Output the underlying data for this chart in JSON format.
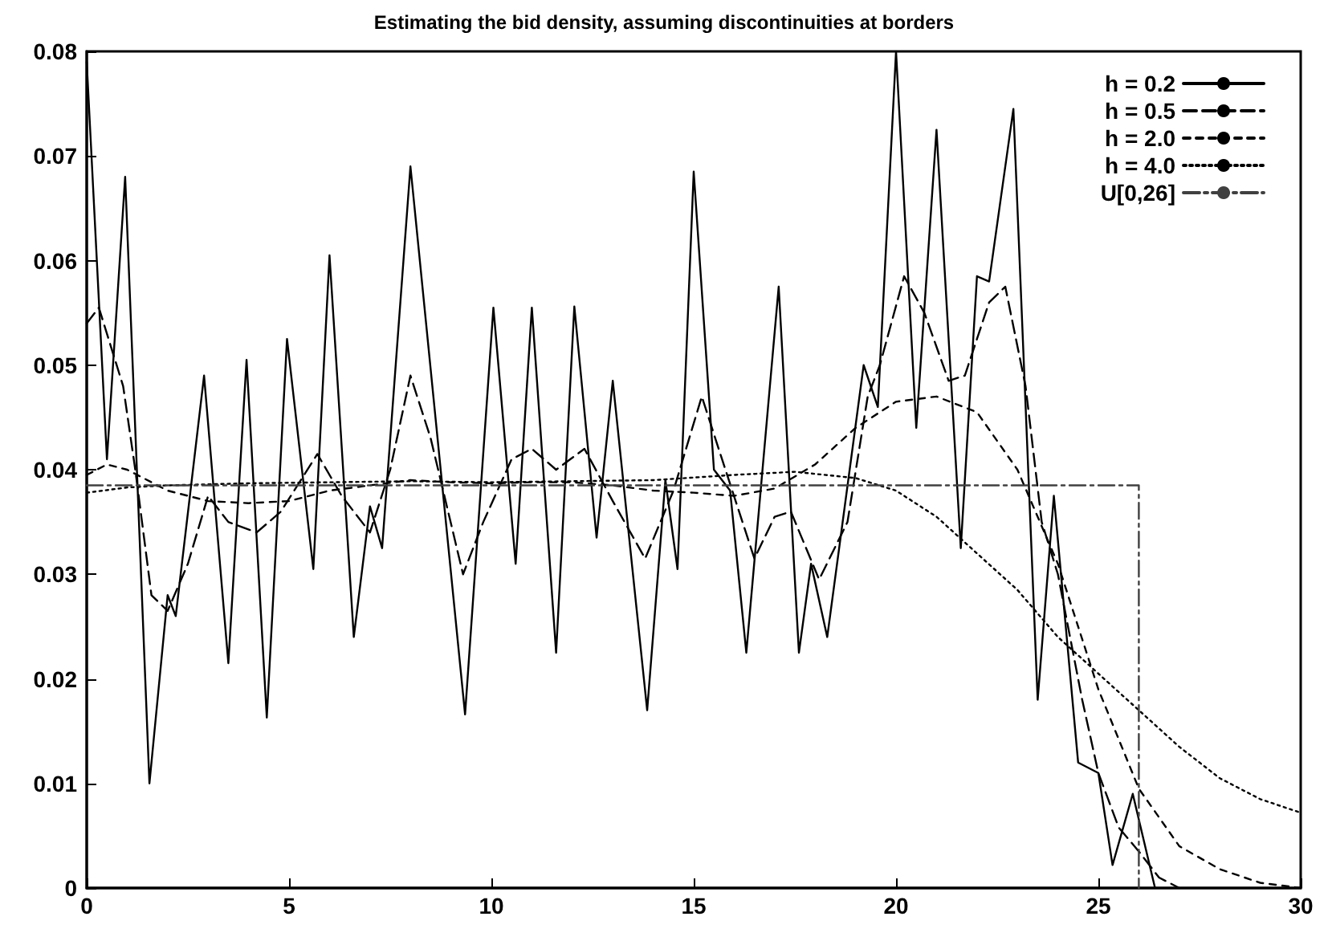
{
  "chart_data": {
    "type": "line",
    "title": "Estimating the bid density, assuming discontinuities at borders",
    "xlim": [
      0,
      30
    ],
    "xticks": [
      0,
      5,
      10,
      15,
      20,
      25,
      30
    ],
    "ylim": [
      0,
      0.08
    ],
    "yticks": [
      0,
      0.01,
      0.02,
      0.03,
      0.04,
      0.05,
      0.06,
      0.07,
      0.08
    ],
    "grid": false,
    "legend": "top right",
    "marker": "none",
    "series": [
      {
        "name": "h = 0.2",
        "color": "#000000",
        "line_style": "solid",
        "x": [
          0,
          0.5,
          0.95,
          1.55,
          2.0,
          2.2,
          2.9,
          3.5,
          3.95,
          4.45,
          4.95,
          5.6,
          6.0,
          6.6,
          7.0,
          7.3,
          8.0,
          9.35,
          10.05,
          10.6,
          11.0,
          11.6,
          12.05,
          12.6,
          13.0,
          13.85,
          14.3,
          14.6,
          15.0,
          15.5,
          15.9,
          16.3,
          17.1,
          17.6,
          17.9,
          18.3,
          19.2,
          19.55,
          20.0,
          20.5,
          21.0,
          21.6,
          22.0,
          22.3,
          22.9,
          23.5,
          23.9,
          24.5,
          25.0,
          25.35,
          25.85,
          26.4
        ],
        "values": [
          0.079,
          0.041,
          0.068,
          0.01,
          0.028,
          0.026,
          0.049,
          0.0215,
          0.0505,
          0.0163,
          0.0525,
          0.0305,
          0.0605,
          0.024,
          0.0365,
          0.0325,
          0.069,
          0.0166,
          0.0555,
          0.031,
          0.0555,
          0.0225,
          0.0556,
          0.0335,
          0.0485,
          0.017,
          0.039,
          0.0305,
          0.0685,
          0.04,
          0.038,
          0.0225,
          0.0575,
          0.0225,
          0.031,
          0.024,
          0.05,
          0.046,
          0.08,
          0.044,
          0.0725,
          0.0325,
          0.0585,
          0.058,
          0.0745,
          0.018,
          0.0375,
          0.012,
          0.011,
          0.0022,
          0.009,
          0
        ]
      },
      {
        "name": "h = 0.5",
        "color": "#000000",
        "line_style": "dashed",
        "x": [
          0,
          0.3,
          0.9,
          1.2,
          1.6,
          2.0,
          2.5,
          3.0,
          3.5,
          4.2,
          4.8,
          5.7,
          6.3,
          7.0,
          7.5,
          8.0,
          8.5,
          9.3,
          9.8,
          10.5,
          11.0,
          11.6,
          12.3,
          13.0,
          13.8,
          14.5,
          15.2,
          15.7,
          16.5,
          17.0,
          17.4,
          18.1,
          18.8,
          19.3,
          19.6,
          20.2,
          20.7,
          21.3,
          21.7,
          22.3,
          22.7,
          23.2,
          23.6,
          24.0,
          24.6,
          25.0,
          25.5,
          26.0,
          26.5,
          27.0
        ],
        "values": [
          0.054,
          0.0555,
          0.048,
          0.04,
          0.028,
          0.0265,
          0.031,
          0.0375,
          0.035,
          0.034,
          0.036,
          0.0415,
          0.0375,
          0.034,
          0.04,
          0.049,
          0.043,
          0.03,
          0.035,
          0.041,
          0.042,
          0.04,
          0.042,
          0.037,
          0.0315,
          0.038,
          0.047,
          0.041,
          0.0315,
          0.0355,
          0.036,
          0.0295,
          0.035,
          0.047,
          0.05,
          0.0585,
          0.055,
          0.0485,
          0.049,
          0.056,
          0.0575,
          0.048,
          0.035,
          0.03,
          0.018,
          0.011,
          0.0058,
          0.0035,
          0.001,
          0
        ]
      },
      {
        "name": "h = 2.0",
        "color": "#000000",
        "line_style": "dashed",
        "x": [
          0,
          0.5,
          1,
          2,
          3,
          4,
          5,
          6,
          7,
          8,
          9,
          10,
          11,
          12,
          13,
          14,
          15,
          16,
          17,
          18,
          19,
          20,
          21,
          22,
          23,
          24,
          25,
          26,
          27,
          28,
          29,
          30
        ],
        "values": [
          0.0395,
          0.0405,
          0.04,
          0.038,
          0.037,
          0.0368,
          0.037,
          0.038,
          0.0385,
          0.039,
          0.0388,
          0.0387,
          0.0388,
          0.0388,
          0.0385,
          0.038,
          0.0378,
          0.0375,
          0.0382,
          0.0405,
          0.044,
          0.0465,
          0.047,
          0.0455,
          0.04,
          0.031,
          0.019,
          0.0095,
          0.004,
          0.0018,
          0.0005,
          0
        ]
      },
      {
        "name": "h = 4.0",
        "color": "#000000",
        "line_style": "dotted",
        "x": [
          0,
          1,
          2,
          4,
          6,
          8,
          10,
          12,
          14,
          16,
          17.5,
          19,
          20,
          21,
          22,
          23,
          24,
          25,
          26,
          27,
          28,
          29,
          30
        ],
        "values": [
          0.0378,
          0.0383,
          0.0385,
          0.0387,
          0.0388,
          0.0389,
          0.0388,
          0.0389,
          0.039,
          0.0395,
          0.0398,
          0.0392,
          0.038,
          0.0355,
          0.032,
          0.0285,
          0.024,
          0.0205,
          0.017,
          0.0135,
          0.0105,
          0.0085,
          0.0072
        ]
      },
      {
        "name": "U[0,26]",
        "color": "#404040",
        "line_style": "dashed",
        "x": [
          0,
          26,
          26
        ],
        "values": [
          0.0385,
          0.0385,
          0
        ]
      }
    ]
  }
}
